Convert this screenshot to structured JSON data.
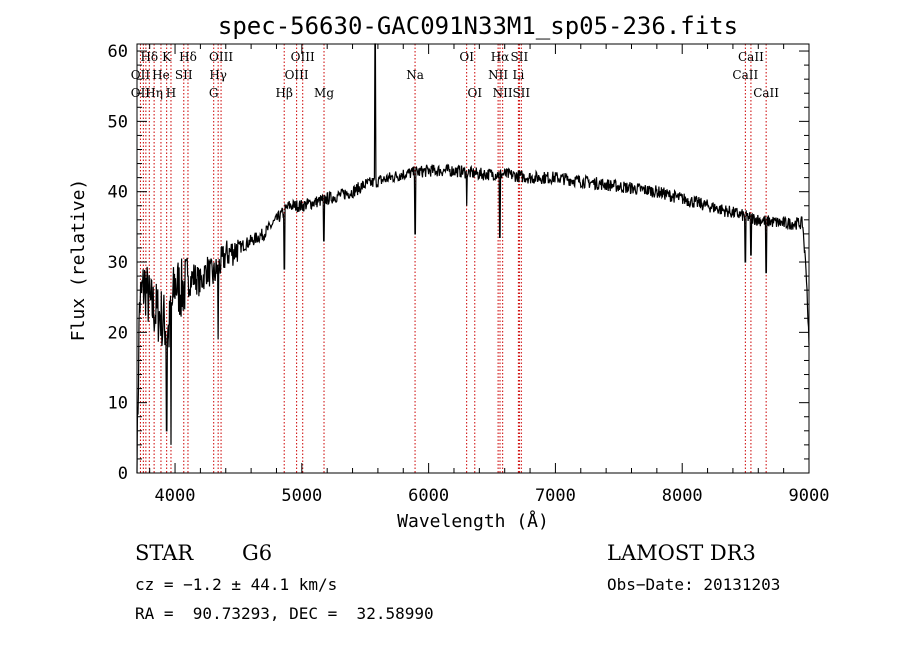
{
  "chart_data": {
    "type": "line",
    "title": "spec-56630-GAC091N33M1_sp05-236.fits",
    "xlabel": "Wavelength (Å)",
    "ylabel": "Flux (relative)",
    "xlim": [
      3700,
      9000
    ],
    "ylim": [
      0,
      61
    ],
    "xticks": [
      4000,
      5000,
      6000,
      7000,
      8000,
      9000
    ],
    "yticks": [
      0,
      10,
      20,
      30,
      40,
      50,
      60
    ],
    "series": [
      {
        "name": "spectrum",
        "anchors": [
          [
            3700,
            1
          ],
          [
            3720,
            24
          ],
          [
            3760,
            27
          ],
          [
            3800,
            24
          ],
          [
            3850,
            23
          ],
          [
            3900,
            22
          ],
          [
            3950,
            20
          ],
          [
            4000,
            27
          ],
          [
            4050,
            26
          ],
          [
            4100,
            27
          ],
          [
            4150,
            28
          ],
          [
            4200,
            27
          ],
          [
            4250,
            29
          ],
          [
            4300,
            28
          ],
          [
            4400,
            31
          ],
          [
            4500,
            32
          ],
          [
            4600,
            33
          ],
          [
            4700,
            34
          ],
          [
            4800,
            36
          ],
          [
            4900,
            38
          ],
          [
            5000,
            38
          ],
          [
            5100,
            38.5
          ],
          [
            5200,
            39
          ],
          [
            5300,
            39.5
          ],
          [
            5400,
            40
          ],
          [
            5500,
            41
          ],
          [
            5600,
            41.5
          ],
          [
            5700,
            42
          ],
          [
            5800,
            42.5
          ],
          [
            6000,
            43
          ],
          [
            6200,
            43
          ],
          [
            6400,
            42.5
          ],
          [
            6600,
            42.5
          ],
          [
            6800,
            42
          ],
          [
            7000,
            42
          ],
          [
            7200,
            41.5
          ],
          [
            7400,
            41
          ],
          [
            7600,
            40.5
          ],
          [
            7800,
            40
          ],
          [
            8000,
            39
          ],
          [
            8200,
            38
          ],
          [
            8400,
            37
          ],
          [
            8500,
            36.5
          ],
          [
            8600,
            36
          ],
          [
            8800,
            35.5
          ],
          [
            8950,
            35.5
          ],
          [
            8980,
            28
          ],
          [
            9000,
            18
          ]
        ],
        "lines": [
          [
            3934,
            6
          ],
          [
            3968,
            4
          ],
          [
            3900,
            19
          ],
          [
            4101,
            28
          ],
          [
            4340,
            19
          ],
          [
            4861,
            29
          ],
          [
            5175,
            33
          ],
          [
            5577,
            61
          ],
          [
            5893,
            34
          ],
          [
            6300,
            38
          ],
          [
            6563,
            33.5
          ],
          [
            8498,
            30
          ],
          [
            8542,
            31
          ],
          [
            8662,
            28.5
          ]
        ]
      }
    ],
    "line_labels": [
      {
        "text": "Hδ",
        "x": 3797,
        "row": 0
      },
      {
        "text": "K",
        "x": 3934,
        "row": 0
      },
      {
        "text": "Hδ",
        "x": 4102,
        "row": 0
      },
      {
        "text": "OIII",
        "x": 4363,
        "row": 0
      },
      {
        "text": "OIII",
        "x": 5007,
        "row": 0
      },
      {
        "text": "OI",
        "x": 6300,
        "row": 0
      },
      {
        "text": "Hα",
        "x": 6563,
        "row": 0
      },
      {
        "text": "SII",
        "x": 6716,
        "row": 0
      },
      {
        "text": "CaII",
        "x": 8542,
        "row": 0
      },
      {
        "text": "OII",
        "x": 3727,
        "row": 1
      },
      {
        "text": "He",
        "x": 3889,
        "row": 1
      },
      {
        "text": "SII",
        "x": 4069,
        "row": 1
      },
      {
        "text": "Hγ",
        "x": 4340,
        "row": 1
      },
      {
        "text": "OIII",
        "x": 4959,
        "row": 1
      },
      {
        "text": "Na",
        "x": 5893,
        "row": 1
      },
      {
        "text": "NII",
        "x": 6548,
        "row": 1
      },
      {
        "text": "Li",
        "x": 6708,
        "row": 1
      },
      {
        "text": "CaII",
        "x": 8498,
        "row": 1
      },
      {
        "text": "OII",
        "x": 3727,
        "row": 2
      },
      {
        "text": "Hη",
        "x": 3835,
        "row": 2
      },
      {
        "text": "H",
        "x": 3968,
        "row": 2
      },
      {
        "text": "G",
        "x": 4305,
        "row": 2
      },
      {
        "text": "Hβ",
        "x": 4861,
        "row": 2
      },
      {
        "text": "Mg",
        "x": 5175,
        "row": 2
      },
      {
        "text": "OI",
        "x": 6364,
        "row": 2
      },
      {
        "text": "NII",
        "x": 6584,
        "row": 2
      },
      {
        "text": "SII",
        "x": 6731,
        "row": 2
      },
      {
        "text": "CaII",
        "x": 8662,
        "row": 2
      }
    ],
    "marker_lines": [
      3727,
      3750,
      3770,
      3797,
      3835,
      3889,
      3934,
      3968,
      4069,
      4102,
      4305,
      4340,
      4363,
      4861,
      4959,
      5007,
      5175,
      5893,
      6300,
      6364,
      6548,
      6563,
      6584,
      6708,
      6716,
      6731,
      8498,
      8542,
      8662
    ],
    "colors": {
      "marker": "#cc0000",
      "line": "#000000"
    }
  },
  "info": {
    "class_label": "STAR",
    "subclass": "G6",
    "survey": "LAMOST DR3",
    "cz": "cz = −1.2 ± 44.1 km/s",
    "obs_date": "Obs−Date: 20131203",
    "coords": "RA =  90.73293, DEC =  32.58990"
  }
}
